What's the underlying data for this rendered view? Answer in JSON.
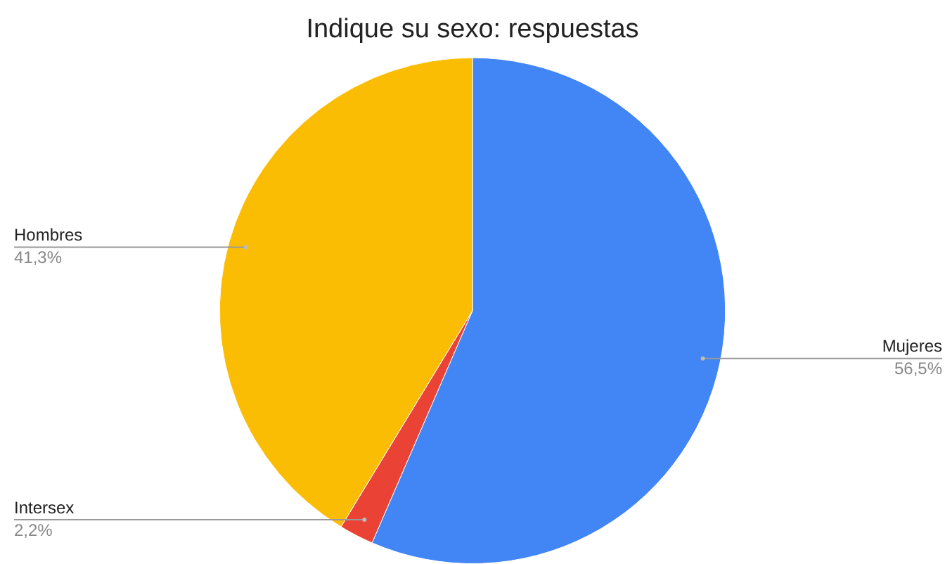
{
  "chart_data": {
    "type": "pie",
    "title": "Indique su sexo: respuestas",
    "categories": [
      "Mujeres",
      "Intersex",
      "Hombres"
    ],
    "values": [
      56.5,
      2.2,
      41.3
    ],
    "colors": [
      "#4285f4",
      "#ea4335",
      "#fbbc04"
    ],
    "value_labels": [
      "56,5%",
      "2,2%",
      "41,3%"
    ],
    "legend": false
  }
}
